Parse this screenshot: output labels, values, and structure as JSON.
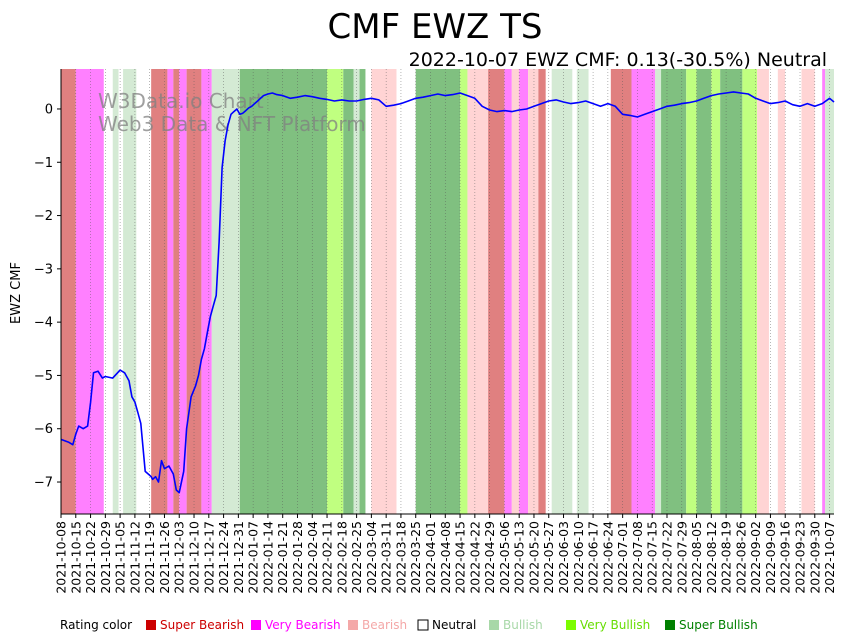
{
  "chart_data": {
    "type": "line",
    "title": "CMF EWZ TS",
    "subtitle": "2022-10-07 EWZ CMF: 0.13(-30.5%) Neutral",
    "xlabel": "",
    "ylabel": "EWZ CMF",
    "ylim": [
      -7.6,
      0.75
    ],
    "yticks": [
      0,
      -1,
      -2,
      -3,
      -4,
      -5,
      -6,
      -7
    ],
    "ytick_labels": [
      "0",
      "−1",
      "−2",
      "−3",
      "−4",
      "−5",
      "−6",
      "−7"
    ],
    "xlim_weeks": [
      0,
      52.3
    ],
    "xtick_labels": [
      "2021-10-08",
      "2021-10-15",
      "2021-10-22",
      "2021-10-29",
      "2021-11-05",
      "2021-11-12",
      "2021-11-19",
      "2021-11-26",
      "2021-12-03",
      "2021-12-10",
      "2021-12-17",
      "2021-12-24",
      "2021-12-31",
      "2022-01-07",
      "2022-01-14",
      "2022-01-21",
      "2022-01-28",
      "2022-02-04",
      "2022-02-11",
      "2022-02-18",
      "2022-02-25",
      "2022-03-04",
      "2022-03-11",
      "2022-03-18",
      "2022-03-25",
      "2022-04-01",
      "2022-04-08",
      "2022-04-15",
      "2022-04-22",
      "2022-04-29",
      "2022-05-06",
      "2022-05-13",
      "2022-05-20",
      "2022-05-27",
      "2022-06-03",
      "2022-06-10",
      "2022-06-17",
      "2022-06-24",
      "2022-07-01",
      "2022-07-08",
      "2022-07-15",
      "2022-07-22",
      "2022-07-29",
      "2022-08-05",
      "2022-08-12",
      "2022-08-19",
      "2022-08-26",
      "2022-09-02",
      "2022-09-09",
      "2022-09-16",
      "2022-09-23",
      "2022-09-30",
      "2022-10-07"
    ],
    "watermark": [
      "W3Data.io Chart",
      "Web3 Data & NFT Platform"
    ],
    "series": [
      {
        "name": "EWZ CMF",
        "color": "#0000ff",
        "x": [
          0,
          0.5,
          0.8,
          1.0,
          1.2,
          1.5,
          1.8,
          2.0,
          2.2,
          2.5,
          2.8,
          3.0,
          3.5,
          4.0,
          4.3,
          4.6,
          4.8,
          5.0,
          5.2,
          5.4,
          5.7,
          5.9,
          6.1,
          6.2,
          6.4,
          6.6,
          6.8,
          7.0,
          7.3,
          7.6,
          7.8,
          8.0,
          8.3,
          8.5,
          8.8,
          9.1,
          9.3,
          9.5,
          9.7,
          9.9,
          10.1,
          10.3,
          10.5,
          10.7,
          10.9,
          11.1,
          11.3,
          11.5,
          11.7,
          11.9,
          12.1,
          12.3,
          12.5,
          12.7,
          12.9,
          13.1,
          13.3,
          13.5,
          13.7,
          14.0,
          14.3,
          14.6,
          15.0,
          15.5,
          16.0,
          16.5,
          17.0,
          17.5,
          18.0,
          18.5,
          19.0,
          19.5,
          20.0,
          20.5,
          21.0,
          21.5,
          22.0,
          22.5,
          23.0,
          23.5,
          24.0,
          24.5,
          25.0,
          25.5,
          26.0,
          26.5,
          27.0,
          27.5,
          28.0,
          28.5,
          29.0,
          29.5,
          30.0,
          30.5,
          31.0,
          31.5,
          32.0,
          32.5,
          33.0,
          33.5,
          34.0,
          34.5,
          35.0,
          35.5,
          36.0,
          36.5,
          37.0,
          37.5,
          38.0,
          38.5,
          39.0,
          39.5,
          40.0,
          40.5,
          41.0,
          41.5,
          42.0,
          42.5,
          43.0,
          43.5,
          44.0,
          44.5,
          45.0,
          45.5,
          46.0,
          46.5,
          47.0,
          47.5,
          48.0,
          48.5,
          49.0,
          49.5,
          50.0,
          50.5,
          51.0,
          51.5,
          52.0,
          52.3
        ],
        "y": [
          -6.2,
          -6.25,
          -6.3,
          -6.1,
          -5.95,
          -6.0,
          -5.95,
          -5.5,
          -4.95,
          -4.92,
          -5.05,
          -5.02,
          -5.05,
          -4.9,
          -4.95,
          -5.1,
          -5.4,
          -5.5,
          -5.7,
          -5.9,
          -6.8,
          -6.85,
          -6.9,
          -6.95,
          -6.9,
          -7.0,
          -6.6,
          -6.75,
          -6.7,
          -6.85,
          -7.15,
          -7.2,
          -6.8,
          -6.0,
          -5.4,
          -5.2,
          -5.0,
          -4.7,
          -4.5,
          -4.2,
          -3.9,
          -3.7,
          -3.5,
          -2.5,
          -1.1,
          -0.6,
          -0.3,
          -0.1,
          -0.05,
          0.0,
          -0.1,
          -0.08,
          -0.03,
          0.02,
          0.05,
          0.1,
          0.15,
          0.2,
          0.25,
          0.28,
          0.3,
          0.27,
          0.25,
          0.2,
          0.22,
          0.25,
          0.23,
          0.2,
          0.18,
          0.15,
          0.17,
          0.15,
          0.15,
          0.18,
          0.2,
          0.17,
          0.05,
          0.07,
          0.1,
          0.15,
          0.2,
          0.22,
          0.25,
          0.28,
          0.25,
          0.27,
          0.3,
          0.25,
          0.2,
          0.05,
          -0.02,
          -0.05,
          -0.03,
          -0.05,
          -0.02,
          0.0,
          0.05,
          0.1,
          0.15,
          0.17,
          0.13,
          0.1,
          0.12,
          0.15,
          0.1,
          0.05,
          0.1,
          0.05,
          -0.1,
          -0.12,
          -0.15,
          -0.1,
          -0.05,
          0.0,
          0.05,
          0.07,
          0.1,
          0.12,
          0.15,
          0.2,
          0.25,
          0.28,
          0.3,
          0.32,
          0.3,
          0.28,
          0.2,
          0.15,
          0.1,
          0.12,
          0.15,
          0.08,
          0.05,
          0.1,
          0.05,
          0.1,
          0.2,
          0.13
        ]
      }
    ],
    "rating_bands": [
      {
        "x0": 0.0,
        "x1": 1.0,
        "rating": "Super Bearish"
      },
      {
        "x0": 1.0,
        "x1": 2.9,
        "rating": "Very Bearish"
      },
      {
        "x0": 2.9,
        "x1": 3.5,
        "rating": "Neutral"
      },
      {
        "x0": 3.5,
        "x1": 3.9,
        "rating": "Bullish"
      },
      {
        "x0": 3.9,
        "x1": 4.2,
        "rating": "Neutral"
      },
      {
        "x0": 4.2,
        "x1": 5.1,
        "rating": "Bullish"
      },
      {
        "x0": 5.1,
        "x1": 6.1,
        "rating": "Neutral"
      },
      {
        "x0": 6.1,
        "x1": 7.2,
        "rating": "Super Bearish"
      },
      {
        "x0": 7.2,
        "x1": 7.6,
        "rating": "Very Bearish"
      },
      {
        "x0": 7.6,
        "x1": 8.0,
        "rating": "Super Bearish"
      },
      {
        "x0": 8.0,
        "x1": 8.5,
        "rating": "Very Bearish"
      },
      {
        "x0": 8.5,
        "x1": 9.5,
        "rating": "Super Bearish"
      },
      {
        "x0": 9.5,
        "x1": 10.2,
        "rating": "Very Bearish"
      },
      {
        "x0": 10.2,
        "x1": 12.1,
        "rating": "Bullish"
      },
      {
        "x0": 12.1,
        "x1": 18.0,
        "rating": "Super Bullish"
      },
      {
        "x0": 18.0,
        "x1": 19.1,
        "rating": "Very Bullish"
      },
      {
        "x0": 19.1,
        "x1": 19.8,
        "rating": "Super Bullish"
      },
      {
        "x0": 19.8,
        "x1": 20.2,
        "rating": "Bullish"
      },
      {
        "x0": 20.2,
        "x1": 20.6,
        "rating": "Super Bullish"
      },
      {
        "x0": 20.6,
        "x1": 21.0,
        "rating": "Neutral"
      },
      {
        "x0": 21.0,
        "x1": 22.7,
        "rating": "Bearish"
      },
      {
        "x0": 22.7,
        "x1": 24.0,
        "rating": "Neutral"
      },
      {
        "x0": 24.0,
        "x1": 27.0,
        "rating": "Super Bullish"
      },
      {
        "x0": 27.0,
        "x1": 27.5,
        "rating": "Very Bullish"
      },
      {
        "x0": 27.5,
        "x1": 28.9,
        "rating": "Bearish"
      },
      {
        "x0": 28.9,
        "x1": 30.0,
        "rating": "Super Bearish"
      },
      {
        "x0": 30.0,
        "x1": 30.5,
        "rating": "Very Bearish"
      },
      {
        "x0": 30.5,
        "x1": 31.0,
        "rating": "Bearish"
      },
      {
        "x0": 31.0,
        "x1": 31.6,
        "rating": "Very Bearish"
      },
      {
        "x0": 31.6,
        "x1": 32.3,
        "rating": "Bearish"
      },
      {
        "x0": 32.3,
        "x1": 32.8,
        "rating": "Super Bearish"
      },
      {
        "x0": 32.8,
        "x1": 33.2,
        "rating": "Neutral"
      },
      {
        "x0": 33.2,
        "x1": 34.6,
        "rating": "Bullish"
      },
      {
        "x0": 34.6,
        "x1": 34.9,
        "rating": "Neutral"
      },
      {
        "x0": 34.9,
        "x1": 35.7,
        "rating": "Bullish"
      },
      {
        "x0": 35.7,
        "x1": 37.2,
        "rating": "Neutral"
      },
      {
        "x0": 37.2,
        "x1": 38.6,
        "rating": "Super Bearish"
      },
      {
        "x0": 38.6,
        "x1": 40.2,
        "rating": "Very Bearish"
      },
      {
        "x0": 40.2,
        "x1": 40.6,
        "rating": "Bullish"
      },
      {
        "x0": 40.6,
        "x1": 42.3,
        "rating": "Super Bullish"
      },
      {
        "x0": 42.3,
        "x1": 43.0,
        "rating": "Very Bullish"
      },
      {
        "x0": 43.0,
        "x1": 44.0,
        "rating": "Super Bullish"
      },
      {
        "x0": 44.0,
        "x1": 44.6,
        "rating": "Very Bullish"
      },
      {
        "x0": 44.6,
        "x1": 46.1,
        "rating": "Super Bullish"
      },
      {
        "x0": 46.1,
        "x1": 47.1,
        "rating": "Very Bullish"
      },
      {
        "x0": 47.1,
        "x1": 47.9,
        "rating": "Bearish"
      },
      {
        "x0": 47.9,
        "x1": 48.5,
        "rating": "Neutral"
      },
      {
        "x0": 48.5,
        "x1": 49.0,
        "rating": "Bearish"
      },
      {
        "x0": 49.0,
        "x1": 50.1,
        "rating": "Neutral"
      },
      {
        "x0": 50.1,
        "x1": 51.0,
        "rating": "Bearish"
      },
      {
        "x0": 51.0,
        "x1": 51.5,
        "rating": "Neutral"
      },
      {
        "x0": 51.5,
        "x1": 51.7,
        "rating": "Very Bearish"
      },
      {
        "x0": 51.7,
        "x1": 52.3,
        "rating": "Bullish"
      }
    ],
    "legend": {
      "label": "Rating color",
      "placement": "bottom",
      "entries": [
        {
          "name": "Super Bearish",
          "swatch": "#cc0000",
          "text_color": "#cc0000",
          "band_color": "#e08080"
        },
        {
          "name": "Very Bearish",
          "swatch": "#ff00ff",
          "text_color": "#ff00ff",
          "band_color": "#ff80ff"
        },
        {
          "name": "Bearish",
          "swatch": "#f4a8a8",
          "text_color": "#f4a8a8",
          "band_color": "#ffd4d4"
        },
        {
          "name": "Neutral",
          "swatch": "#ffffff",
          "text_color": "#000000",
          "band_color": "#ffffff"
        },
        {
          "name": "Bullish",
          "swatch": "#a8d8a8",
          "text_color": "#a8d8a8",
          "band_color": "#d4ead4"
        },
        {
          "name": "Very Bullish",
          "swatch": "#7cfc00",
          "text_color": "#66dd00",
          "band_color": "#c0ff80"
        },
        {
          "name": "Super Bullish",
          "swatch": "#008000",
          "text_color": "#008000",
          "band_color": "#80c080"
        }
      ]
    }
  }
}
